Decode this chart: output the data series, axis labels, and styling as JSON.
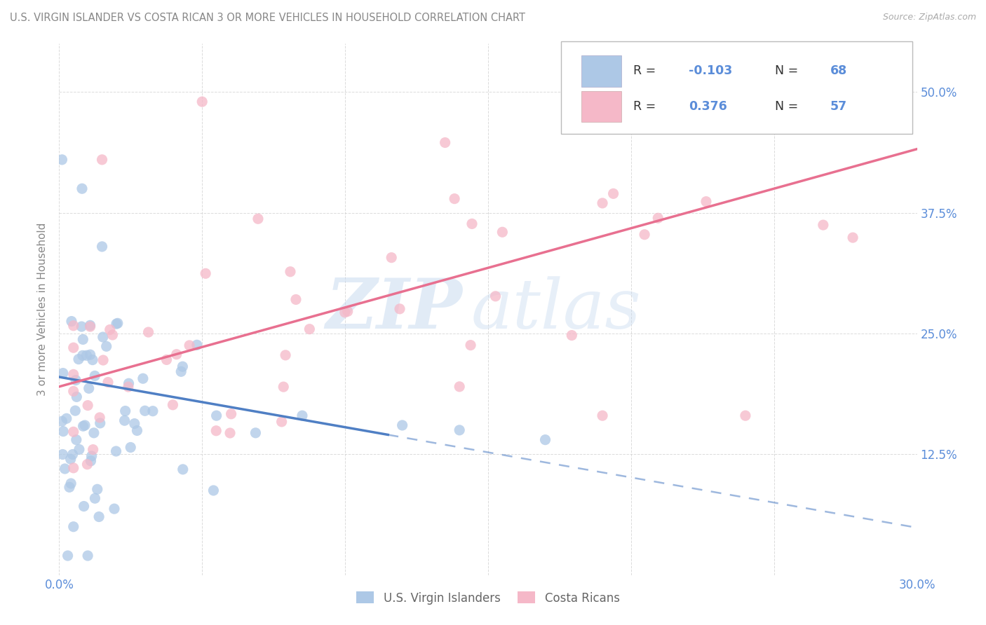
{
  "title": "U.S. VIRGIN ISLANDER VS COSTA RICAN 3 OR MORE VEHICLES IN HOUSEHOLD CORRELATION CHART",
  "source": "Source: ZipAtlas.com",
  "ylabel": "3 or more Vehicles in Household",
  "x_min": 0.0,
  "x_max": 0.3,
  "y_min": 0.0,
  "y_max": 0.55,
  "x_ticks": [
    0.0,
    0.05,
    0.1,
    0.15,
    0.2,
    0.25,
    0.3
  ],
  "x_tick_labels": [
    "0.0%",
    "",
    "",
    "",
    "",
    "",
    "30.0%"
  ],
  "y_ticks": [
    0.0,
    0.125,
    0.25,
    0.375,
    0.5
  ],
  "y_tick_labels": [
    "",
    "12.5%",
    "25.0%",
    "37.5%",
    "50.0%"
  ],
  "legend_labels": [
    "U.S. Virgin Islanders",
    "Costa Ricans"
  ],
  "r_vi": -0.103,
  "n_vi": 68,
  "r_cr": 0.376,
  "n_cr": 57,
  "color_vi": "#adc8e6",
  "color_cr": "#f5b8c8",
  "line_color_vi": "#4f7fc4",
  "line_color_cr": "#e87090",
  "watermark_zip": "ZIP",
  "watermark_atlas": "atlas",
  "title_color": "#666666",
  "axis_color": "#5b8dd9",
  "background_color": "#ffffff",
  "grid_color": "#cccccc",
  "vi_line_x_solid_end": 0.115,
  "vi_line_x_dash_start": 0.115,
  "vi_line_x_dash_end": 0.3,
  "vi_line_y0": 0.205,
  "vi_line_slope": -0.52,
  "cr_line_y0": 0.195,
  "cr_line_slope": 0.82
}
